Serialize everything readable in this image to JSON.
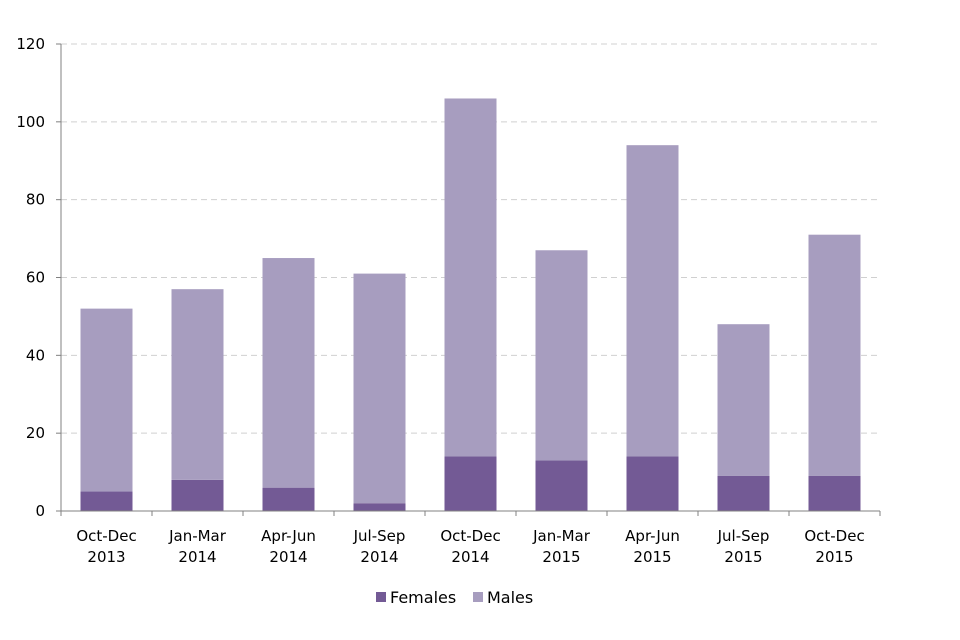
{
  "chart_data": {
    "type": "bar",
    "stacked": true,
    "categories": [
      [
        "Oct-Dec",
        "2013"
      ],
      [
        "Jan-Mar",
        "2014"
      ],
      [
        "Apr-Jun",
        "2014"
      ],
      [
        "Jul-Sep",
        "2014"
      ],
      [
        "Oct-Dec",
        "2014"
      ],
      [
        "Jan-Mar",
        "2015"
      ],
      [
        "Apr-Jun",
        "2015"
      ],
      [
        "Jul-Sep",
        "2015"
      ],
      [
        "Oct-Dec",
        "2015"
      ]
    ],
    "series": [
      {
        "name": "Females",
        "color": "#735a95",
        "values": [
          5,
          8,
          6,
          2,
          14,
          13,
          14,
          9,
          9
        ]
      },
      {
        "name": "Males",
        "color": "#a79dbf",
        "values": [
          47,
          49,
          59,
          59,
          92,
          54,
          80,
          39,
          62
        ]
      }
    ],
    "title": "",
    "xlabel": "",
    "ylabel": "",
    "ylim": [
      0,
      120
    ],
    "yticks": [
      0,
      20,
      40,
      60,
      80,
      100,
      120
    ],
    "grid": "horizontal dashed",
    "legend": "bottom"
  }
}
